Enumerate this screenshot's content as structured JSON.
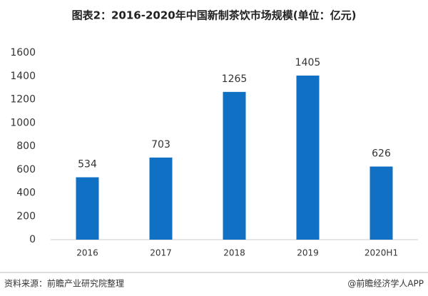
{
  "chart_data": {
    "type": "bar",
    "title": "图表2：2016-2020年中国新制茶饮市场规模(单位：亿元)",
    "categories": [
      "2016",
      "2017",
      "2018",
      "2019",
      "2020H1"
    ],
    "values": [
      534,
      703,
      1265,
      1405,
      626
    ],
    "color": "#1070c4",
    "ylim": [
      0,
      1600
    ],
    "yticks": [
      0,
      200,
      400,
      600,
      800,
      1000,
      1200,
      1400,
      1600
    ],
    "grid": false,
    "source": "资料来源：前瞻产业研究院整理",
    "credit": "@前瞻经济学人APP"
  }
}
